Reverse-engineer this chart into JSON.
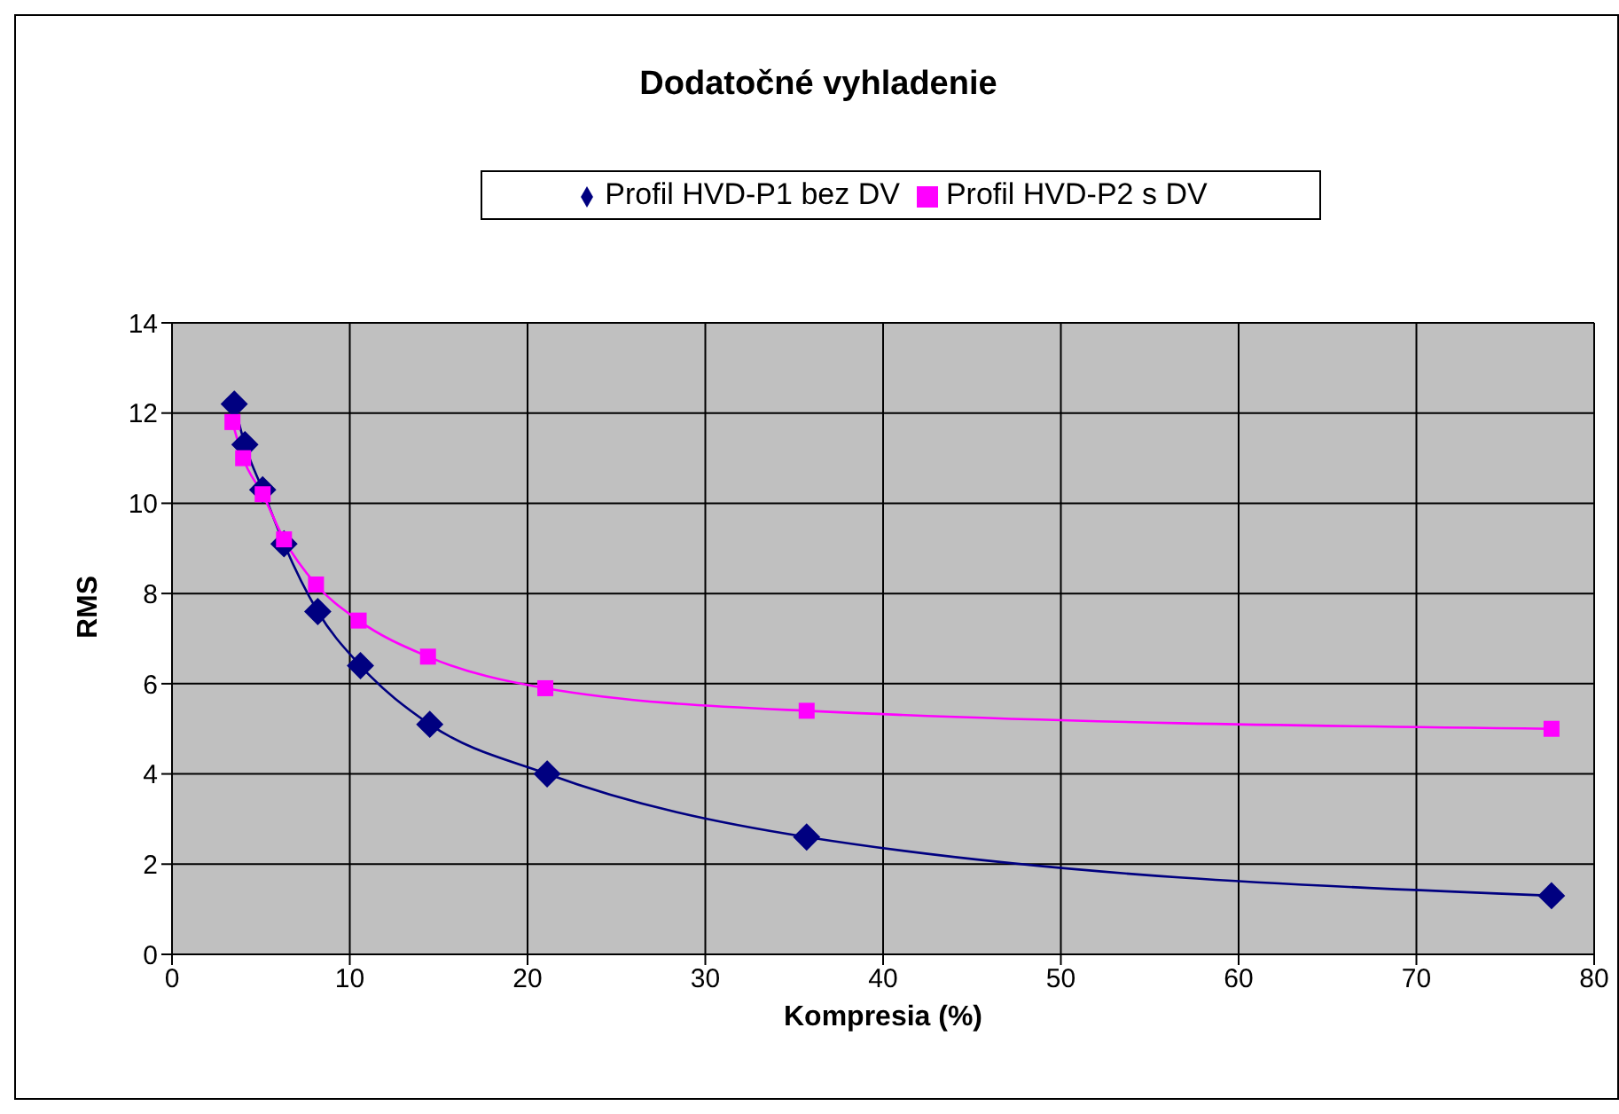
{
  "chart_data": {
    "type": "line",
    "title": "Dodatočné vyhladenie",
    "xlabel": "Kompresia (%)",
    "ylabel": "RMS",
    "xlim": [
      0,
      80
    ],
    "xticks": [
      0,
      10,
      20,
      30,
      40,
      50,
      60,
      70,
      80
    ],
    "ylim": [
      0,
      14
    ],
    "yticks": [
      0,
      2,
      4,
      6,
      8,
      10,
      12,
      14
    ],
    "grid": true,
    "legend": "top",
    "line_style": "solid",
    "series": [
      {
        "name": "Profil HVD-P1 bez DV",
        "color": "#000080",
        "marker": "diamond",
        "x": [
          3.5,
          4.1,
          5.1,
          6.3,
          8.2,
          10.6,
          14.5,
          21.1,
          35.7,
          77.6
        ],
        "values": [
          12.2,
          11.3,
          10.3,
          9.1,
          7.6,
          6.4,
          5.1,
          4.0,
          2.6,
          1.3
        ]
      },
      {
        "name": "Profil HVD-P2 s DV",
        "color": "#ff00ff",
        "marker": "square",
        "x": [
          3.4,
          4.0,
          5.1,
          6.3,
          8.1,
          10.5,
          14.4,
          21.0,
          35.7,
          77.6
        ],
        "values": [
          11.8,
          11.0,
          10.2,
          9.2,
          8.2,
          7.4,
          6.6,
          5.9,
          5.4,
          5.0
        ]
      }
    ]
  }
}
